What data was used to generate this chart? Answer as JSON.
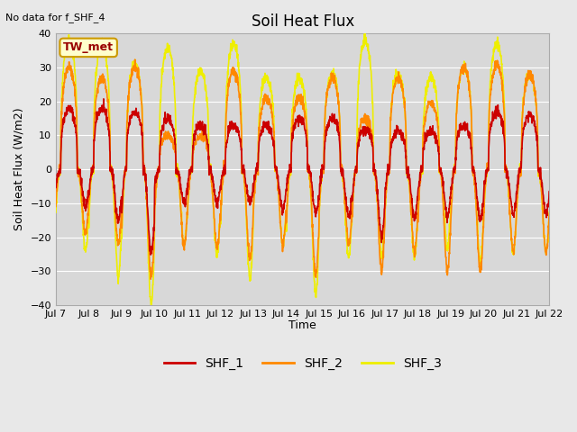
{
  "title": "Soil Heat Flux",
  "ylabel": "Soil Heat Flux (W/m2)",
  "xlabel": "Time",
  "note": "No data for f_SHF_4",
  "legend_label": "TW_met",
  "ylim": [
    -40,
    40
  ],
  "yticks": [
    -40,
    -30,
    -20,
    -10,
    0,
    10,
    20,
    30,
    40
  ],
  "xtick_labels": [
    "Jul 7",
    "Jul 8",
    "Jul 9",
    "Jul 10",
    "Jul 11",
    "Jul 12",
    "Jul 13",
    "Jul 14",
    "Jul 15",
    "Jul 16",
    "Jul 17",
    "Jul 18",
    "Jul 19",
    "Jul 20",
    "Jul 21",
    "Jul 22"
  ],
  "series": {
    "SHF_1": {
      "color": "#cc0000",
      "linewidth": 1.2
    },
    "SHF_2": {
      "color": "#ff8800",
      "linewidth": 1.2
    },
    "SHF_3": {
      "color": "#eeee00",
      "linewidth": 1.2
    }
  },
  "fig_bg_color": "#e8e8e8",
  "plot_bg_color": "#d8d8d8",
  "grid_color": "#ffffff",
  "legend_box_facecolor": "#ffffcc",
  "legend_box_edgecolor": "#cc9900"
}
